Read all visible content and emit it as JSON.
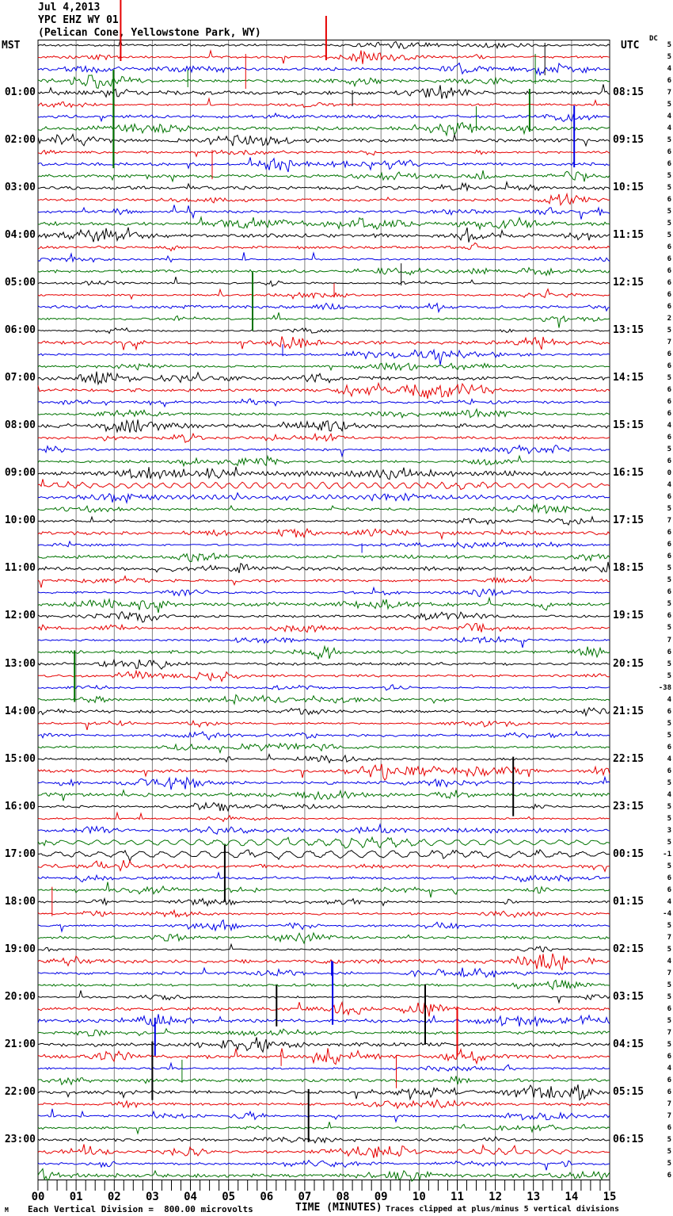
{
  "header": {
    "date": "Jul 4,2013",
    "station": "YPC EHZ WY 01",
    "location": "(Pelican Cone, Yellowstone Park, WY)"
  },
  "axes": {
    "left_label": "MST",
    "right_label": "UTC",
    "dc_label": "DC",
    "xlabel": "TIME (MINUTES)",
    "left_times": [
      "01:00",
      "02:00",
      "03:00",
      "04:00",
      "05:00",
      "06:00",
      "07:00",
      "08:00",
      "09:00",
      "10:00",
      "11:00",
      "12:00",
      "13:00",
      "14:00",
      "15:00",
      "16:00",
      "17:00",
      "18:00",
      "19:00",
      "20:00",
      "21:00",
      "22:00",
      "23:00"
    ],
    "right_times": [
      "08:15",
      "09:15",
      "10:15",
      "11:15",
      "12:15",
      "13:15",
      "14:15",
      "15:15",
      "16:15",
      "17:15",
      "18:15",
      "19:15",
      "20:15",
      "21:15",
      "22:15",
      "23:15",
      "00:15",
      "01:15",
      "02:15",
      "03:15",
      "04:15",
      "05:15",
      "06:15"
    ],
    "minute_labels": [
      "00",
      "01",
      "02",
      "03",
      "04",
      "05",
      "06",
      "07",
      "08",
      "09",
      "10",
      "11",
      "12",
      "13",
      "14",
      "15"
    ]
  },
  "dc_values": [
    5,
    5,
    4,
    6,
    7,
    5,
    4,
    4,
    5,
    6,
    6,
    5,
    5,
    6,
    5,
    5,
    5,
    6,
    6,
    6,
    6,
    6,
    6,
    2,
    5,
    7,
    6,
    6,
    5,
    6,
    6,
    6,
    4,
    6,
    5,
    6,
    0,
    4,
    6,
    5,
    7,
    6,
    6,
    6,
    5,
    5,
    6,
    5,
    6,
    5,
    7,
    6,
    5,
    5,
    -38,
    4,
    6,
    5,
    5,
    6,
    4,
    6,
    5,
    4,
    5,
    5,
    3,
    5,
    -1,
    5,
    6,
    6,
    4,
    -4,
    5,
    7,
    5,
    4,
    7,
    5,
    5,
    6,
    5,
    7,
    5,
    6,
    4,
    6,
    6,
    7,
    7,
    6,
    5,
    5,
    5,
    6
  ],
  "footer": {
    "scale_text": "Each Vertical Division =  800.00 microvolts",
    "clip_text": "Traces clipped at plus/minus 5 vertical divisions",
    "watermark": "M"
  },
  "chart_data": {
    "type": "line",
    "subtype": "helicorder-seismogram",
    "x_range_minutes": [
      0,
      15
    ],
    "rows": 96,
    "row_duration_minutes": 15,
    "row_colors_cycle": [
      "#000000",
      "#e60000",
      "#0000e6",
      "#007300"
    ],
    "grid_color": "#808080",
    "microvolts_per_division": 800,
    "clip_divisions": 5,
    "noise_seed": 20130704,
    "events": [
      {
        "row": 0,
        "min": 13.3,
        "up": 3,
        "dn": 38
      },
      {
        "row": 1,
        "min": 2.17,
        "up": 72,
        "dn": 5
      },
      {
        "row": 1,
        "min": 5.45,
        "up": 4,
        "dn": 40
      },
      {
        "row": 1,
        "min": 7.56,
        "up": 52,
        "dn": 4
      },
      {
        "row": 3,
        "min": 3.93,
        "up": 14,
        "dn": 8
      },
      {
        "row": 3,
        "min": 13.05,
        "up": 34,
        "dn": 4
      },
      {
        "row": 4,
        "min": 8.25,
        "up": 3,
        "dn": 17
      },
      {
        "row": 7,
        "min": 1.98,
        "up": 74,
        "dn": 50
      },
      {
        "row": 7,
        "min": 11.5,
        "up": 28,
        "dn": 3
      },
      {
        "row": 7,
        "min": 12.9,
        "up": 50,
        "dn": 4
      },
      {
        "row": 9,
        "min": 4.57,
        "up": 3,
        "dn": 34
      },
      {
        "row": 10,
        "min": 14.07,
        "up": 74,
        "dn": 4
      },
      {
        "row": 20,
        "min": 9.53,
        "up": 25,
        "dn": 3
      },
      {
        "row": 21,
        "min": 7.77,
        "up": 15,
        "dn": 3
      },
      {
        "row": 23,
        "min": 5.63,
        "up": 59,
        "dn": 15
      },
      {
        "row": 26,
        "min": 6.42,
        "up": 13,
        "dn": 2
      },
      {
        "row": 42,
        "min": 8.5,
        "up": 2,
        "dn": 10
      },
      {
        "row": 55,
        "min": 0.96,
        "up": 62,
        "dn": 3
      },
      {
        "row": 60,
        "min": 12.47,
        "up": 3,
        "dn": 72
      },
      {
        "row": 68,
        "min": 4.9,
        "up": 12,
        "dn": 60
      },
      {
        "row": 73,
        "min": 0.37,
        "up": 34,
        "dn": 3
      },
      {
        "row": 78,
        "min": 7.7,
        "up": 16,
        "dn": 3
      },
      {
        "row": 80,
        "min": 6.26,
        "up": 15,
        "dn": 37
      },
      {
        "row": 80,
        "min": 10.16,
        "up": 16,
        "dn": 60
      },
      {
        "row": 81,
        "min": 11.0,
        "up": 3,
        "dn": 60
      },
      {
        "row": 82,
        "min": 3.07,
        "up": 4,
        "dn": 44
      },
      {
        "row": 82,
        "min": 7.73,
        "up": 75,
        "dn": 5
      },
      {
        "row": 84,
        "min": 3.0,
        "up": 4,
        "dn": 70
      },
      {
        "row": 85,
        "min": 6.38,
        "up": 2,
        "dn": 12
      },
      {
        "row": 85,
        "min": 9.4,
        "up": 2,
        "dn": 40
      },
      {
        "row": 87,
        "min": 3.78,
        "up": 26,
        "dn": 3
      },
      {
        "row": 88,
        "min": 7.1,
        "up": 4,
        "dn": 63
      }
    ],
    "wiggles": [
      {
        "row": 36,
        "start": 1.5,
        "end": 14.8,
        "amp": 2.2,
        "period": 0.13
      },
      {
        "row": 37,
        "start": 0.2,
        "end": 14.9,
        "amp": 3.5,
        "period": 0.35
      },
      {
        "row": 38,
        "start": 0.5,
        "end": 14.5,
        "amp": 1.8,
        "period": 0.2
      },
      {
        "row": 66,
        "start": 6.0,
        "end": 14.5,
        "amp": 1.6,
        "period": 0.15
      },
      {
        "row": 67,
        "start": 0.3,
        "end": 14.9,
        "amp": 3.5,
        "period": 0.45
      },
      {
        "row": 68,
        "start": 0.1,
        "end": 14.9,
        "amp": 4.0,
        "period": 0.55
      },
      {
        "row": 93,
        "start": 3.2,
        "end": 4.6,
        "amp": 3.0,
        "period": 0.3
      },
      {
        "row": 93,
        "start": 10.8,
        "end": 14.2,
        "amp": 3.0,
        "period": 0.35
      }
    ]
  }
}
